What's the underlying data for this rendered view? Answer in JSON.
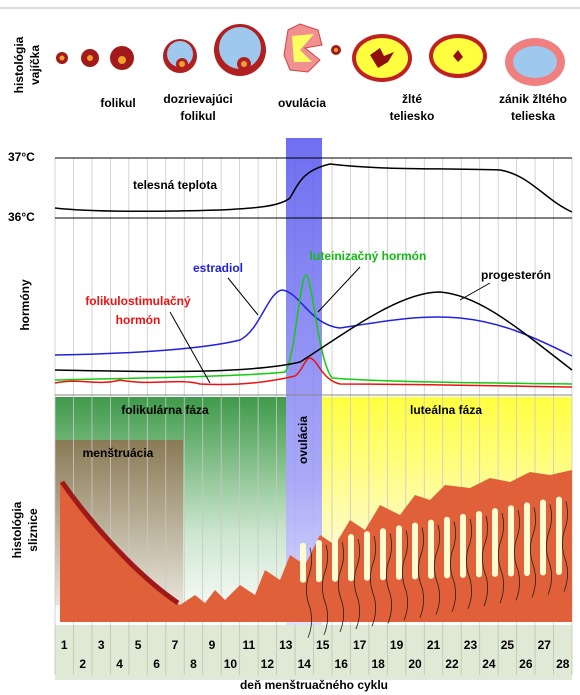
{
  "left_labels": {
    "egg_histology": [
      "histológia",
      "vajíčka"
    ],
    "hormones": "hormóny",
    "mucosa": [
      "histológia",
      "sliznice"
    ]
  },
  "stages": [
    [
      "folikul"
    ],
    [
      "dozrievajúci",
      "folikul"
    ],
    [
      "ovulácia"
    ],
    [
      "žlté",
      "teliesko"
    ],
    [
      "zánik žltého",
      "telieska"
    ]
  ],
  "temperature": {
    "high": "37°C",
    "low": "36°C",
    "label": "telesná teplota"
  },
  "hormones": {
    "estradiol": "estradiol",
    "lh": "luteinizačný hormón",
    "progesterone": "progesterón",
    "fsh": [
      "folikulostimulačný",
      "hormón"
    ]
  },
  "phases": {
    "follicular": "folikulárna fáza",
    "ovulation": "ovulácia",
    "luteal": "luteálna fáza",
    "menstruation": "menštruácia"
  },
  "days": [
    1,
    2,
    3,
    4,
    5,
    6,
    7,
    8,
    9,
    10,
    11,
    12,
    13,
    14,
    15,
    16,
    17,
    18,
    19,
    20,
    21,
    22,
    23,
    24,
    25,
    26,
    27,
    28
  ],
  "x_label": "deň menštruačného cyklu"
}
